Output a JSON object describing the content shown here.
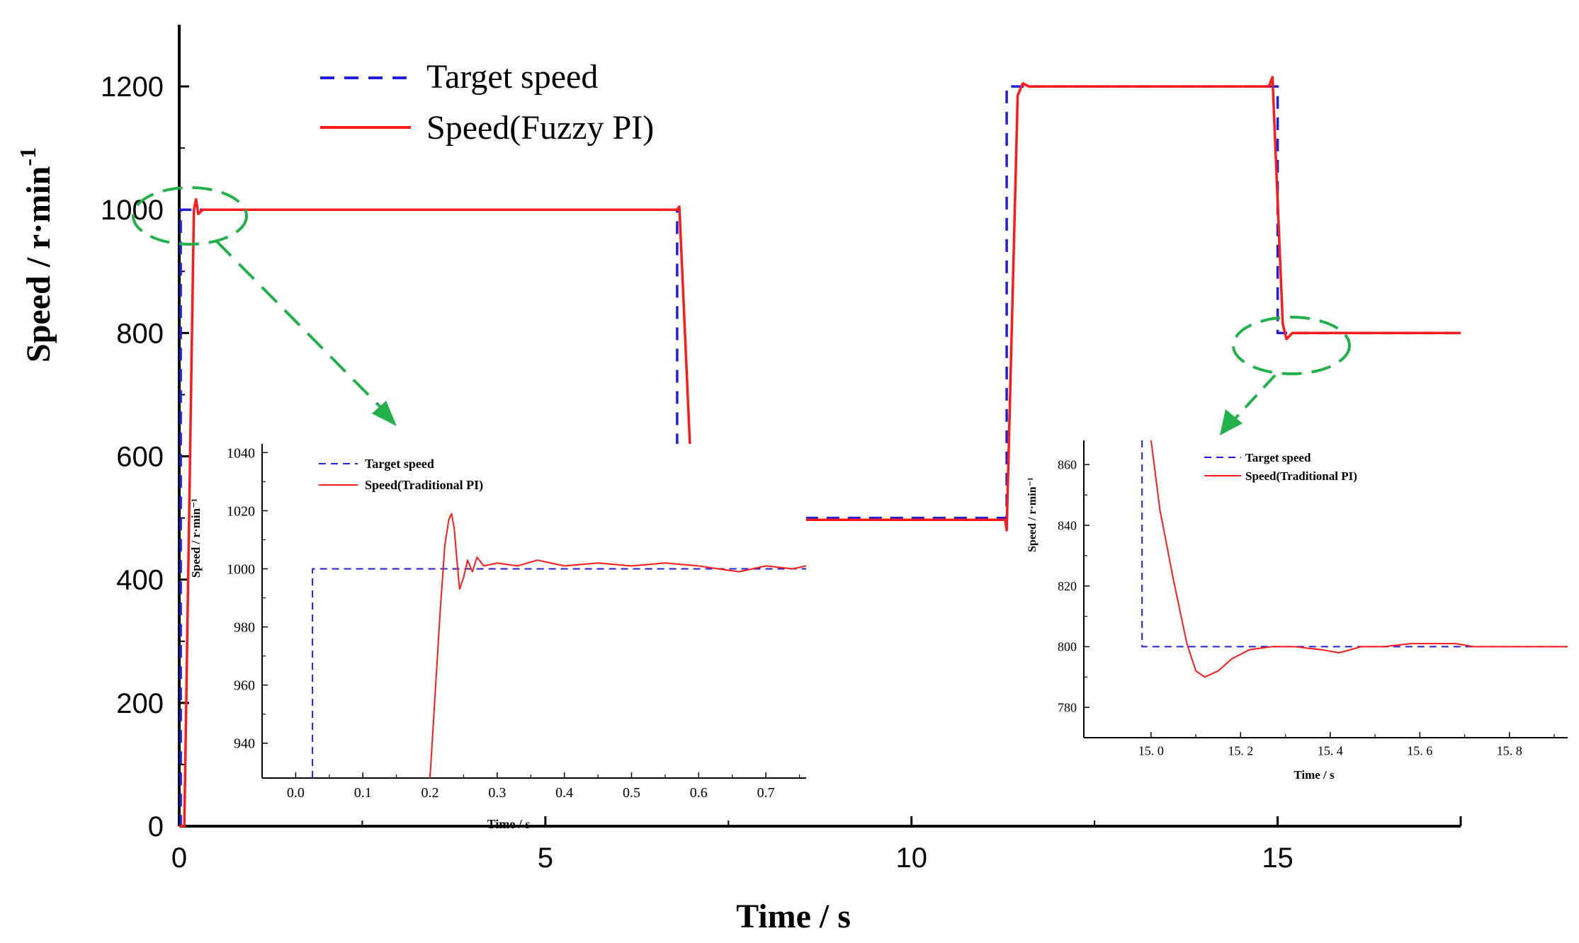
{
  "chart_data": [
    {
      "id": "main",
      "type": "line",
      "title": "",
      "xlabel": "Time / s",
      "ylabel_main": "Speed / r·min",
      "ylabel_sup": "-1",
      "xlim": [
        0,
        17.5
      ],
      "ylim": [
        0,
        1300
      ],
      "xticks": [
        0,
        5,
        10,
        15
      ],
      "xtick_labels": [
        "0",
        "5",
        "10",
        "15"
      ],
      "yticks": [
        0,
        200,
        400,
        600,
        800,
        1000,
        1200
      ],
      "ytick_labels": [
        "0",
        "200",
        "400",
        "600",
        "800",
        "1000",
        "1200"
      ],
      "grid": false,
      "legend_position": "top-left",
      "series": [
        {
          "name": "Target speed",
          "style": "dashed",
          "color": "#1f1fe0",
          "x": [
            0,
            0.02,
            0.02,
            6.8,
            6.8,
            11.3,
            11.3,
            15.0,
            15.0,
            17.5
          ],
          "y": [
            0,
            0,
            1000,
            1000,
            500,
            500,
            1200,
            1200,
            800,
            800
          ]
        },
        {
          "name": "Speed(Fuzzy PI)",
          "style": "solid",
          "color": "#ff1a1a",
          "x": [
            0,
            0.07,
            0.2,
            0.23,
            0.26,
            0.32,
            6.8,
            6.83,
            7.02,
            7.06,
            7.15,
            11.28,
            11.3,
            11.45,
            11.52,
            11.6,
            14.88,
            14.93,
            15.07,
            15.12,
            15.2,
            17.5
          ],
          "y": [
            0,
            0,
            1000,
            1017,
            993,
            1000,
            1000,
            1005,
            495,
            490,
            497,
            497,
            480,
            1185,
            1205,
            1200,
            1200,
            1215,
            815,
            790,
            800,
            800
          ]
        }
      ]
    },
    {
      "id": "inset-left",
      "type": "line",
      "xlim": [
        -0.05,
        0.76
      ],
      "ylim": [
        928,
        1043
      ],
      "xticks": [
        0,
        0.1,
        0.2,
        0.3,
        0.4,
        0.5,
        0.6,
        0.7
      ],
      "xtick_labels": [
        "0.0",
        "0.1",
        "0.2",
        "0.3",
        "0.4",
        "0.5",
        "0.6",
        "0.7"
      ],
      "yticks": [
        940,
        960,
        980,
        1000,
        1020,
        1040
      ],
      "ytick_labels": [
        "940",
        "960",
        "980",
        "1000",
        "1020",
        "1040"
      ],
      "xlabel": "Time / s",
      "ylabel": "Speed / r·min⁻¹",
      "legend_position": "top-left",
      "series": [
        {
          "name": "Target speed",
          "style": "dashed",
          "color": "#1f1fe0",
          "x": [
            0.025,
            0.025,
            0.76
          ],
          "y": [
            928,
            1000,
            1000
          ]
        },
        {
          "name": "Speed(Traditional PI)",
          "style": "solid",
          "color": "#ff1a1a",
          "x": [
            0.2,
            0.215,
            0.222,
            0.228,
            0.232,
            0.236,
            0.24,
            0.244,
            0.25,
            0.256,
            0.263,
            0.27,
            0.28,
            0.3,
            0.33,
            0.36,
            0.4,
            0.45,
            0.5,
            0.55,
            0.6,
            0.66,
            0.7,
            0.74,
            0.76
          ],
          "y": [
            928,
            985,
            1008,
            1017,
            1019,
            1014,
            1003,
            993,
            997,
            1003,
            999,
            1004,
            1001,
            1002,
            1001,
            1003,
            1001,
            1002,
            1001,
            1002,
            1001,
            999,
            1001,
            1000,
            1001
          ]
        }
      ]
    },
    {
      "id": "inset-right",
      "type": "line",
      "xlim": [
        14.85,
        15.93
      ],
      "ylim": [
        770,
        868
      ],
      "xticks": [
        15.0,
        15.2,
        15.4,
        15.6,
        15.8
      ],
      "xtick_labels": [
        "15.0",
        "15.2",
        "15.4",
        "15.6",
        "15.8"
      ],
      "yticks": [
        780,
        800,
        820,
        840,
        860
      ],
      "ytick_labels": [
        "780",
        "800",
        "820",
        "840",
        "860"
      ],
      "xlabel": "Time / s",
      "ylabel": "Speed / r·min⁻¹",
      "legend_position": "top-left",
      "series": [
        {
          "name": "Target speed",
          "style": "dashed",
          "color": "#1f1fe0",
          "x": [
            14.98,
            14.98,
            15.93
          ],
          "y": [
            868,
            800,
            800
          ]
        },
        {
          "name": "Speed(Traditional PI)",
          "style": "solid",
          "color": "#ff1a1a",
          "x": [
            15.0,
            15.02,
            15.05,
            15.08,
            15.1,
            15.12,
            15.15,
            15.18,
            15.22,
            15.27,
            15.32,
            15.38,
            15.42,
            15.47,
            15.52,
            15.58,
            15.63,
            15.68,
            15.72,
            15.78,
            15.85,
            15.93
          ],
          "y": [
            868,
            845,
            822,
            801,
            792,
            790,
            792,
            796,
            799,
            800,
            800,
            799,
            798,
            800,
            800,
            801,
            801,
            801,
            800,
            800,
            800,
            800
          ]
        }
      ]
    }
  ],
  "inset_left": {
    "ytick_labels": [
      "940",
      "960",
      "980",
      "1000",
      "1020",
      "1040"
    ],
    "xtick_labels": [
      "0.0",
      "0.1",
      "0.2",
      "0.3",
      "0.4",
      "0.5",
      "0.6",
      "0.7"
    ],
    "legend_target": "Target speed",
    "legend_speed": "Speed(Traditional PI)",
    "ylabel": "Speed / r·min⁻¹",
    "xlabel": "Time / s"
  },
  "inset_right": {
    "ytick_labels": [
      "780",
      "800",
      "820",
      "840",
      "860"
    ],
    "xtick_labels": [
      "15. 0",
      "15. 2",
      "15. 4",
      "15. 6",
      "15. 8"
    ],
    "legend_target": "Target speed",
    "legend_speed": "Speed(Traditional PI)",
    "ylabel": "Speed / r·min⁻¹",
    "xlabel": "Time / s"
  },
  "legend": {
    "target": "Target speed",
    "speed": "Speed(Fuzzy PI)"
  },
  "colors": {
    "target": "#1f1fe0",
    "speed": "#ff1a1a",
    "annotation": "#22b04a"
  }
}
